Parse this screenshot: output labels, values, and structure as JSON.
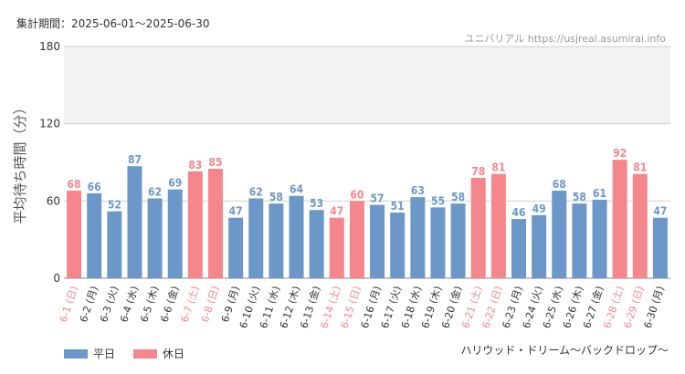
{
  "header": {
    "period": "集計期間：2025-06-01～2025-06-30",
    "site": "ユニバリアル https://usjreal.asumirai.info"
  },
  "footer": {
    "attraction": "ハリウッド・ドリーム～バックドロップ～"
  },
  "legend": {
    "weekday_label": "平日",
    "holiday_label": "休日"
  },
  "colors": {
    "weekday": "#6b98c8",
    "holiday": "#f5868c",
    "band": "#f2f2f2"
  },
  "chart_data": {
    "type": "bar",
    "ylabel": "平均待ち時間（分）",
    "ylim": [
      0,
      180
    ],
    "yticks": [
      0,
      60,
      120,
      180
    ],
    "shaded_band": [
      120,
      180
    ],
    "categories": [
      "6-1 (日)",
      "6-2 (月)",
      "6-3 (火)",
      "6-4 (水)",
      "6-5 (木)",
      "6-6 (金)",
      "6-7 (土)",
      "6-8 (日)",
      "6-9 (月)",
      "6-10 (火)",
      "6-11 (水)",
      "6-12 (木)",
      "6-13 (金)",
      "6-14 (土)",
      "6-15 (日)",
      "6-16 (月)",
      "6-17 (火)",
      "6-18 (水)",
      "6-19 (木)",
      "6-20 (金)",
      "6-21 (土)",
      "6-22 (日)",
      "6-23 (月)",
      "6-24 (火)",
      "6-25 (水)",
      "6-26 (木)",
      "6-27 (金)",
      "6-28 (土)",
      "6-29 (日)",
      "6-30 (月)"
    ],
    "values": [
      68,
      66,
      52,
      87,
      62,
      69,
      83,
      85,
      47,
      62,
      58,
      64,
      53,
      47,
      60,
      57,
      51,
      63,
      55,
      58,
      78,
      81,
      46,
      49,
      68,
      58,
      61,
      92,
      81,
      47
    ],
    "holiday": [
      true,
      false,
      false,
      false,
      false,
      false,
      true,
      true,
      false,
      false,
      false,
      false,
      false,
      true,
      true,
      false,
      false,
      false,
      false,
      false,
      true,
      true,
      false,
      false,
      false,
      false,
      false,
      true,
      true,
      false
    ],
    "series": [
      {
        "name": "平日",
        "color": "#6b98c8"
      },
      {
        "name": "休日",
        "color": "#f5868c"
      }
    ],
    "legend_position": "bottom-left",
    "grid": true
  }
}
